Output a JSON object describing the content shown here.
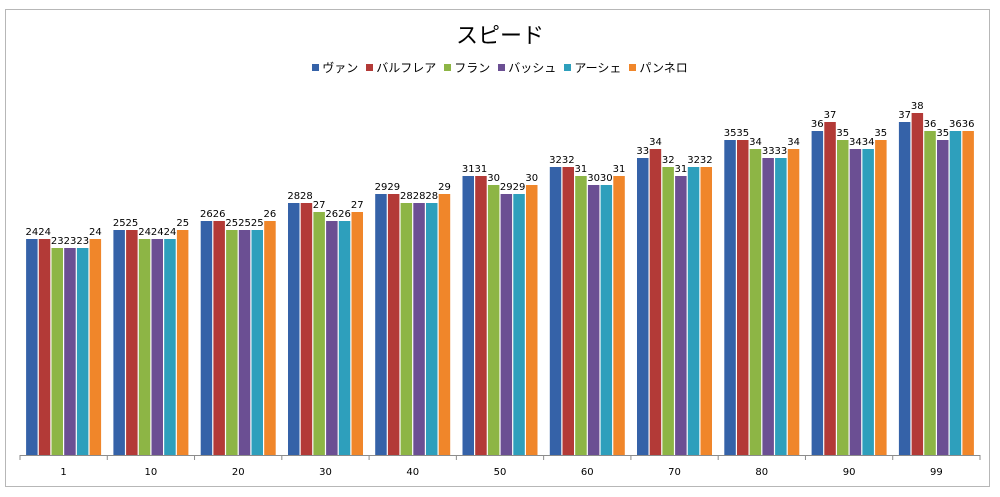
{
  "chart_data": {
    "type": "bar",
    "title": "スピード",
    "categories": [
      "1",
      "10",
      "20",
      "30",
      "40",
      "50",
      "60",
      "70",
      "80",
      "90",
      "99"
    ],
    "series": [
      {
        "name": "ヴァン",
        "color": "#3562a8",
        "values": [
          24,
          25,
          26,
          28,
          29,
          31,
          32,
          33,
          35,
          36,
          37
        ]
      },
      {
        "name": "バルフレア",
        "color": "#b33a37",
        "values": [
          24,
          25,
          26,
          28,
          29,
          31,
          32,
          34,
          35,
          37,
          38
        ]
      },
      {
        "name": "フラン",
        "color": "#8db545",
        "values": [
          23,
          24,
          25,
          27,
          28,
          30,
          31,
          32,
          34,
          35,
          36
        ]
      },
      {
        "name": "バッシュ",
        "color": "#6b4f93",
        "values": [
          23,
          24,
          25,
          26,
          28,
          29,
          30,
          31,
          33,
          34,
          35
        ]
      },
      {
        "name": "アーシェ",
        "color": "#2e9fbc",
        "values": [
          23,
          24,
          25,
          26,
          28,
          29,
          30,
          32,
          33,
          34,
          36
        ]
      },
      {
        "name": "パンネロ",
        "color": "#f0862a",
        "values": [
          24,
          25,
          26,
          27,
          29,
          30,
          31,
          32,
          34,
          35,
          36
        ]
      }
    ],
    "ylim": [
      0,
      48
    ],
    "grid": false,
    "legend_position": "top"
  }
}
